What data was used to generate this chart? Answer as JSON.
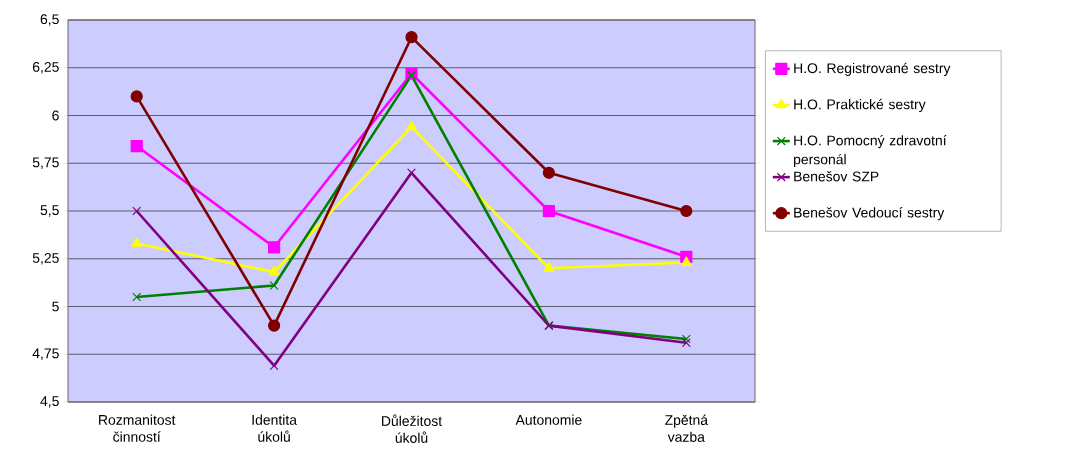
{
  "chart_data": {
    "type": "line",
    "categories": [
      "Rozmanitost činností",
      "Identita úkolů",
      "Důležitost úkolů",
      "Autonomie",
      "Zpětná vazba"
    ],
    "ylim": [
      4.5,
      6.5
    ],
    "yticks": [
      {
        "value": 4.5,
        "label": "4,5"
      },
      {
        "value": 4.75,
        "label": "4,75"
      },
      {
        "value": 5,
        "label": "5"
      },
      {
        "value": 5.25,
        "label": "5,25"
      },
      {
        "value": 5.5,
        "label": "5,5"
      },
      {
        "value": 5.75,
        "label": "5,75"
      },
      {
        "value": 6,
        "label": "6"
      },
      {
        "value": 6.25,
        "label": "6,25"
      },
      {
        "value": 6.5,
        "label": "6,5"
      }
    ],
    "grid": "y",
    "legend": "right",
    "line_style": "solid",
    "series": [
      {
        "name": "H.O. Registrované sestry",
        "color": "#ff00ff",
        "marker": "square",
        "values": [
          5.84,
          5.31,
          6.22,
          5.5,
          5.26
        ]
      },
      {
        "name": "H.O. Praktické sestry",
        "color": "#ffff00",
        "marker": "triangle",
        "values": [
          5.33,
          5.18,
          5.94,
          5.2,
          5.23
        ]
      },
      {
        "name": "H.O. Pomocný zdravotní personál",
        "color": "#008000",
        "marker": "cross",
        "values": [
          5.05,
          5.11,
          6.21,
          4.9,
          4.83
        ]
      },
      {
        "name": "Benešov SZP",
        "color": "#800080",
        "marker": "cross",
        "values": [
          5.5,
          4.69,
          5.7,
          4.9,
          4.81
        ]
      },
      {
        "name": "Benešov Vedoucí sestry",
        "color": "#800000",
        "marker": "circle",
        "values": [
          6.1,
          4.9,
          6.41,
          5.7,
          5.5
        ]
      }
    ]
  }
}
